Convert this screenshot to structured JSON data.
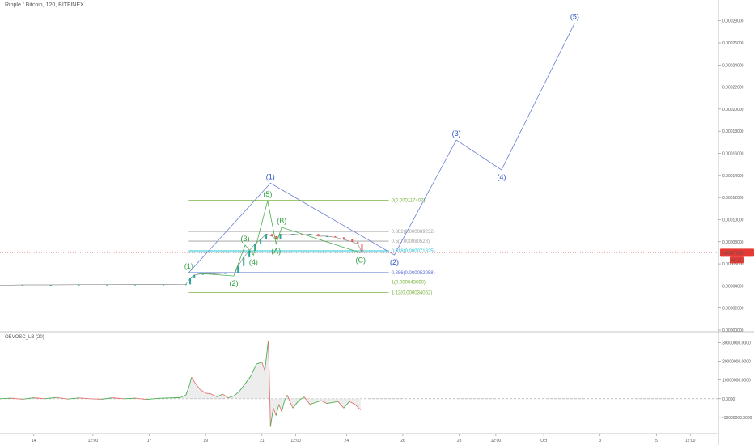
{
  "header": {
    "title": "Ripple / Bitcoin, 120, BITFINEX"
  },
  "indicator": {
    "title": "OBVOSC_LB (20)"
  },
  "chart_data": {
    "type": "line",
    "title": "Ripple / Bitcoin, 120, BITFINEX",
    "price_axis": {
      "ylim": [
        0,
        0.00029
      ],
      "ticks": [
        "0.00000000",
        "0.00002000",
        "0.00004000",
        "0.00006000",
        "0.00008000",
        "0.00010000",
        "0.00012000",
        "0.00014000",
        "0.00016000",
        "0.00018000",
        "0.00020000",
        "0.00022000",
        "0.00024000",
        "0.00026000",
        "0.00028000"
      ],
      "tick_values": [
        0,
        2e-05,
        4e-05,
        6e-05,
        8e-05,
        0.0001,
        0.00012,
        0.00014,
        0.00016,
        0.00018,
        0.0002,
        0.00022,
        0.00024,
        0.00026,
        0.00028
      ],
      "current_price_label": "0.00007000",
      "current_price_value": 7e-05,
      "countdown_label": "48:31"
    },
    "time_axis": {
      "labels": [
        "14",
        "12:00",
        "17",
        "19",
        "21",
        "12:00",
        "24",
        "26",
        "28",
        "12:00",
        "Oct",
        "3",
        "5",
        "12:00"
      ],
      "positions": [
        13.4,
        15.5,
        17.5,
        19.5,
        21.5,
        22.7,
        24.5,
        26.5,
        28.5,
        29.8,
        31.5,
        33.5,
        35.5,
        36.7
      ],
      "xlim": [
        12.2,
        37.7
      ]
    },
    "indicator_axis": {
      "ylim": [
        -17000000,
        35000000
      ],
      "ticks": [
        "30000000.0000",
        "20000000.0000",
        "10000000.0000",
        "0.0000",
        "-10000000.0000"
      ],
      "tick_values": [
        30000000,
        20000000,
        10000000,
        0,
        -10000000
      ]
    },
    "fib_levels": [
      {
        "label": "0(0.000117407)",
        "ratio": 0,
        "value": 0.000117407
      },
      {
        "label": "0.382(0.000089232)",
        "ratio": 0.382,
        "value": 8.9232e-05
      },
      {
        "label": "0.5(0.000080528)",
        "ratio": 0.5,
        "value": 8.0528e-05
      },
      {
        "label": "0.618(0.000071825)",
        "ratio": 0.618,
        "value": 7.1825e-05
      },
      {
        "label": "0.886(0.000052058)",
        "ratio": 0.886,
        "value": 5.2058e-05
      },
      {
        "label": "1(0.000043650)",
        "ratio": 1,
        "value": 4.365e-05
      },
      {
        "label": "1.13(0.000034062)",
        "ratio": 1.13,
        "value": 3.4062e-05
      }
    ],
    "fib_x_range": [
      18.9,
      26.0
    ],
    "major_waves": [
      {
        "label": "(1)",
        "x": 21.8,
        "y": 0.000133
      },
      {
        "label": "(2)",
        "x": 26.2,
        "y": 6.8e-05
      },
      {
        "label": "(3)",
        "x": 28.4,
        "y": 0.000172
      },
      {
        "label": "(4)",
        "x": 30.0,
        "y": 0.000145
      },
      {
        "label": "(5)",
        "x": 32.6,
        "y": 0.000278
      }
    ],
    "major_wave_start": {
      "x": 18.9,
      "y": 5.2e-05
    },
    "minor_waves": [
      {
        "label": "(1)",
        "x": 18.9,
        "y": 5.2e-05
      },
      {
        "label": "(2)",
        "x": 20.5,
        "y": 4.9e-05
      },
      {
        "label": "(3)",
        "x": 20.9,
        "y": 7.7e-05
      },
      {
        "label": "(4)",
        "x": 21.2,
        "y": 6.8e-05
      },
      {
        "label": "(5)",
        "x": 21.7,
        "y": 0.000117
      },
      {
        "label": "(A)",
        "x": 22.0,
        "y": 7.8e-05
      },
      {
        "label": "(B)",
        "x": 22.2,
        "y": 9.3e-05
      },
      {
        "label": "(C)",
        "x": 25.0,
        "y": 7e-05
      }
    ],
    "price_series": {
      "x": [
        12.2,
        13.0,
        14.0,
        15.0,
        16.0,
        17.0,
        18.0,
        18.8,
        18.95,
        19.1,
        19.4,
        19.8,
        20.2,
        20.55,
        20.65,
        20.85,
        21.05,
        21.25,
        21.45,
        21.65,
        21.85,
        22.0,
        22.15,
        22.35,
        22.6,
        22.9,
        23.2,
        23.5,
        23.8,
        24.1,
        24.4,
        24.7,
        24.9,
        25.05
      ],
      "y": [
        4.05e-05,
        4.1e-05,
        4.1e-05,
        4.12e-05,
        4.12e-05,
        4.13e-05,
        4.13e-05,
        4.15e-05,
        4.7e-05,
        5e-05,
        5.1e-05,
        5.1e-05,
        5.15e-05,
        5.2e-05,
        5.8e-05,
        6.6e-05,
        7.2e-05,
        7.8e-05,
        8.2e-05,
        8.7e-05,
        8.5e-05,
        8.2e-05,
        8.7e-05,
        8.6e-05,
        8.7e-05,
        8.6e-05,
        8.7e-05,
        8.5e-05,
        8.5e-05,
        8.4e-05,
        8.2e-05,
        8e-05,
        7.8e-05,
        7e-05
      ]
    },
    "indicator_series": {
      "x": [
        12.2,
        12.6,
        13.0,
        13.4,
        13.8,
        14.2,
        14.6,
        15.0,
        15.4,
        15.8,
        16.2,
        16.6,
        17.0,
        17.4,
        17.8,
        18.2,
        18.6,
        18.8,
        18.9,
        19.0,
        19.1,
        19.3,
        19.5,
        19.7,
        19.9,
        20.1,
        20.3,
        20.5,
        20.7,
        20.9,
        21.1,
        21.3,
        21.5,
        21.6,
        21.7,
        21.72,
        21.75,
        21.8,
        21.9,
        22.0,
        22.1,
        22.2,
        22.3,
        22.4,
        22.5,
        22.6,
        22.8,
        23.0,
        23.2,
        23.4,
        23.6,
        23.8,
        24.0,
        24.2,
        24.4,
        24.6,
        24.8,
        25.0
      ],
      "y": [
        0,
        300000,
        -300000,
        500000,
        0,
        700000,
        -200000,
        400000,
        0,
        -300000,
        500000,
        0,
        300000,
        -400000,
        200000,
        400000,
        600000,
        2000000,
        6000000,
        11500000,
        9000000,
        5000000,
        3000000,
        2500000,
        1000000,
        2500000,
        500000,
        1500000,
        4000000,
        8000000,
        12000000,
        18500000,
        19500000,
        15000000,
        28000000,
        31000000,
        18000000,
        -15000000,
        -5000000,
        -9000000,
        -3000000,
        -7000000,
        -1000000,
        2000000,
        -2000000,
        -5000000,
        -1000000,
        1000000,
        -3000000,
        -2000000,
        -1000000,
        -2500000,
        -2000000,
        -1500000,
        -5000000,
        -1500000,
        -3000000,
        -6000000
      ]
    }
  },
  "colors": {
    "major_wave": "#6b7fd4",
    "major_label": "#2a52be",
    "minor_wave": "#4caf50",
    "minor_label": "#2e9e3f",
    "fib_line": "#7cb342",
    "fib_grey": "#9e9e9e",
    "fib_cyan": "#26c6da",
    "fib_blue": "#5a6fd6",
    "candle_up": "#26a69a",
    "candle_down": "#ef5350",
    "price_line": "#8c8c8c",
    "current_price_bg": "#e53935",
    "indicator_up": "#4caf50",
    "indicator_down": "#e57373",
    "fill": "#e6e6e6",
    "axis": "#555555"
  }
}
